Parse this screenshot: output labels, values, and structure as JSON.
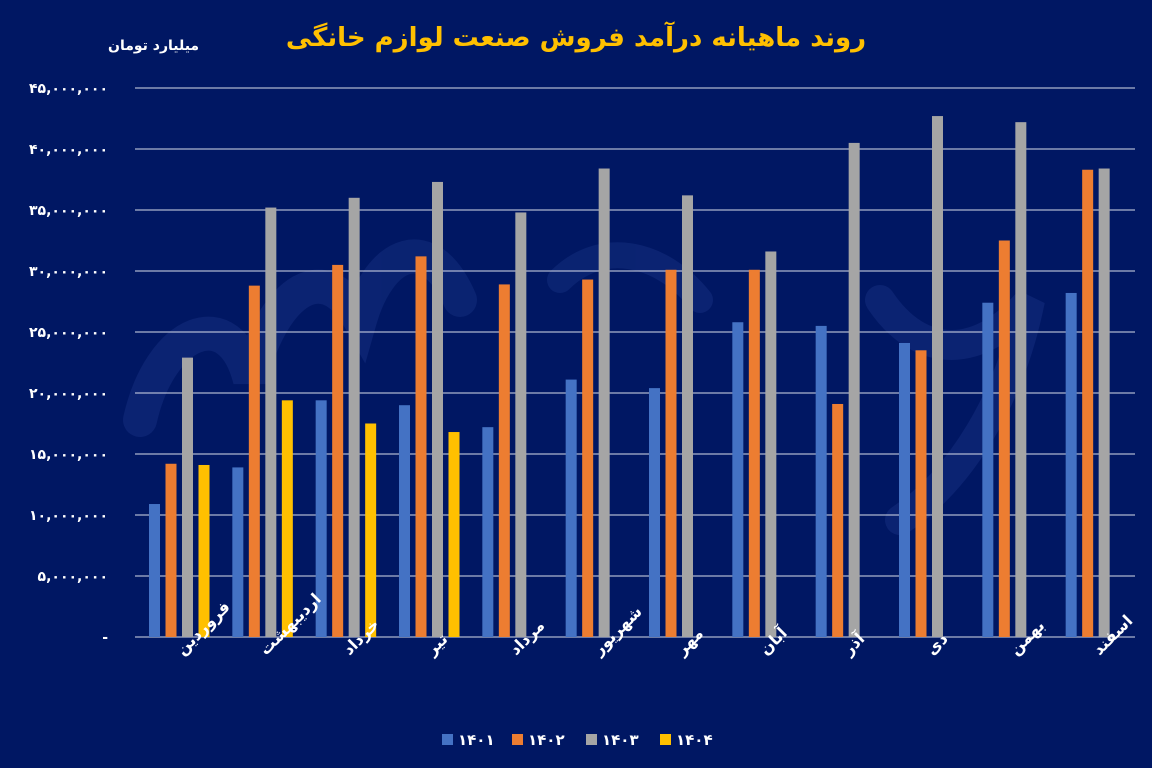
{
  "colors": {
    "background": "#001763",
    "title": "#ffc000",
    "text": "#ffffff",
    "grid": "#ffffff",
    "series": [
      "#4472c4",
      "#ed7d31",
      "#a5a5a5",
      "#ffc000"
    ],
    "watermark": "#0c2573"
  },
  "chart_data": {
    "type": "bar",
    "title": "روند ماهیانه درآمد فروش صنعت لوازم خانگی",
    "ylabel": "میلیارد تومان",
    "xlabel": "",
    "ylim": [
      0,
      45000000
    ],
    "yticks": [
      0,
      5000000,
      10000000,
      15000000,
      20000000,
      25000000,
      30000000,
      35000000,
      40000000,
      45000000
    ],
    "ytick_labels": [
      "-",
      "۵,۰۰۰,۰۰۰",
      "۱۰,۰۰۰,۰۰۰",
      "۱۵,۰۰۰,۰۰۰",
      "۲۰,۰۰۰,۰۰۰",
      "۲۵,۰۰۰,۰۰۰",
      "۳۰,۰۰۰,۰۰۰",
      "۳۵,۰۰۰,۰۰۰",
      "۴۰,۰۰۰,۰۰۰",
      "۴۵,۰۰۰,۰۰۰"
    ],
    "grid": true,
    "legend_position": "bottom",
    "categories": [
      "فروردین",
      "اردیبهشت",
      "خرداد",
      "تیر",
      "مرداد",
      "شهریور",
      "مهر",
      "آبان",
      "آذر",
      "دی",
      "بهمن",
      "اسفند"
    ],
    "series": [
      {
        "name": "۱۴۰۱",
        "values": [
          10900000,
          13900000,
          19400000,
          19000000,
          17200000,
          21100000,
          20400000,
          25800000,
          25500000,
          24100000,
          27400000,
          28200000
        ]
      },
      {
        "name": "۱۴۰۲",
        "values": [
          14200000,
          28800000,
          30500000,
          31200000,
          28900000,
          29300000,
          30100000,
          30100000,
          19100000,
          23500000,
          32500000,
          38300000
        ]
      },
      {
        "name": "۱۴۰۳",
        "values": [
          22900000,
          35200000,
          36000000,
          37300000,
          34800000,
          38400000,
          36200000,
          31600000,
          40500000,
          42700000,
          42200000,
          38400000
        ]
      },
      {
        "name": "۱۴۰۴",
        "values": [
          14100000,
          19400000,
          17500000,
          16800000,
          null,
          null,
          null,
          null,
          null,
          null,
          null,
          null
        ]
      }
    ]
  }
}
